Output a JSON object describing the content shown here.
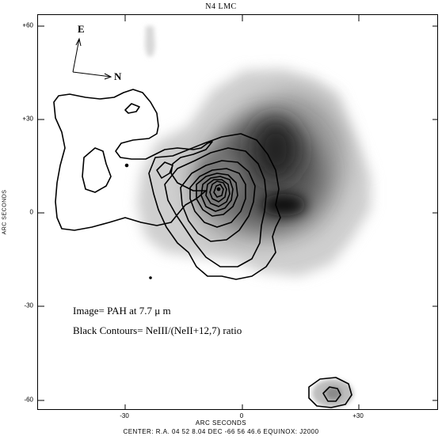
{
  "title": "N4 LMC",
  "y_axis": {
    "label": "ARC SECONDS",
    "ticks": [
      "+60",
      "+30",
      "0",
      "-30",
      "-60"
    ]
  },
  "x_axis": {
    "label": "ARC SECONDS",
    "ticks": [
      "-30",
      "0",
      "+30"
    ]
  },
  "footer": "CENTER: R.A. 04 52  8.04 DEC -66 56 46.6  EQUINOX: J2000",
  "compass": {
    "east": "E",
    "north": "N"
  },
  "annotations": {
    "image_line": "Image= PAH at 7.7 μ m",
    "contours_line": "Black Contours= NeIII/(NeII+12,7) ratio"
  },
  "colors": {
    "background": "#ffffff",
    "ink": "#000000"
  }
}
